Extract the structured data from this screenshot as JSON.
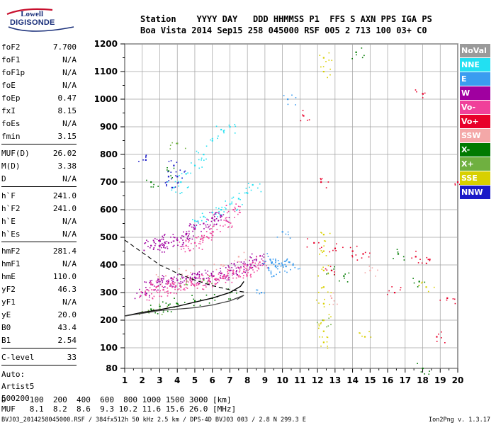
{
  "logo": {
    "line1": "Lowell",
    "line2": "DIGISONDE"
  },
  "header": {
    "line1": "Station    YYYY DAY   DDD HHMMSS P1  FFS S AXN PPS IGA PS",
    "line2": "Boa Vista 2014 Sep15 258 045000 RSF 005 2 713 100 03+ C0"
  },
  "params": [
    {
      "label": "foF2",
      "value": "7.700"
    },
    {
      "label": "foF1",
      "value": "N/A"
    },
    {
      "label": "foF1p",
      "value": "N/A"
    },
    {
      "label": "foE",
      "value": "N/A"
    },
    {
      "label": "foEp",
      "value": "0.47"
    },
    {
      "label": "fxI",
      "value": "8.15"
    },
    {
      "label": "foEs",
      "value": "N/A"
    },
    {
      "label": "fmin",
      "value": "3.15"
    },
    {
      "sep": true
    },
    {
      "label": "MUF(D)",
      "value": "26.02"
    },
    {
      "label": "M(D)",
      "value": "3.38"
    },
    {
      "label": "D",
      "value": "N/A"
    },
    {
      "sep": true
    },
    {
      "label": "h`F",
      "value": "241.0"
    },
    {
      "label": "h`F2",
      "value": "241.0"
    },
    {
      "label": "h`E",
      "value": "N/A"
    },
    {
      "label": "h`Es",
      "value": "N/A"
    },
    {
      "sep": true
    },
    {
      "label": "hmF2",
      "value": "281.4"
    },
    {
      "label": "hmF1",
      "value": "N/A"
    },
    {
      "label": "hmE",
      "value": "110.0"
    },
    {
      "label": "yF2",
      "value": "46.3"
    },
    {
      "label": "yF1",
      "value": "N/A"
    },
    {
      "label": "yE",
      "value": "20.0"
    },
    {
      "label": "B0",
      "value": "43.4"
    },
    {
      "label": "B1",
      "value": "2.54"
    },
    {
      "sep": true
    },
    {
      "label": "C-level",
      "value": "33"
    },
    {
      "sep": true
    }
  ],
  "auto_lines": [
    "Auto:",
    "Artist5",
    "500200"
  ],
  "bottom": {
    "d_row": "D     100  200  400  600  800 1000 1500 3000 [km]",
    "muf_row": "MUF   8.1  8.2  8.6  9.3 10.2 11.6 15.6 26.0 [MHz]"
  },
  "footer": {
    "left": "BVJ03_2014258045000.RSF / 384fx512h 50 kHz 2.5 km / DPS-4D BVJ03 003 / 2.8 N 299.3 E",
    "right": "Ion2Png v. 1.3.17"
  },
  "legend": [
    {
      "label": "NoVal",
      "color": "#9a9a9a"
    },
    {
      "label": "NNE",
      "color": "#22e0f2"
    },
    {
      "label": "E",
      "color": "#3a9cf0"
    },
    {
      "label": "W",
      "color": "#a000a0"
    },
    {
      "label": "Vo-",
      "color": "#f0409a"
    },
    {
      "label": "Vo+",
      "color": "#e8002a"
    },
    {
      "label": "SSW",
      "color": "#f4a8a8"
    },
    {
      "label": "X-",
      "color": "#007a00"
    },
    {
      "label": "X+",
      "color": "#6fb040"
    },
    {
      "label": "SSE",
      "color": "#d8d000"
    },
    {
      "label": "NNW",
      "color": "#1a1ac8"
    }
  ],
  "chart_data": {
    "type": "scatter",
    "title": "",
    "xlabel": "",
    "ylabel": "",
    "xlim": [
      1,
      20
    ],
    "ylim": [
      80,
      1200
    ],
    "x_ticks": [
      1,
      2,
      3,
      4,
      5,
      6,
      7,
      8,
      9,
      10,
      11,
      12,
      13,
      14,
      15,
      16,
      17,
      18,
      19,
      20
    ],
    "y_ticks": [
      80,
      100,
      200,
      300,
      400,
      500,
      600,
      700,
      800,
      900,
      1000,
      1100,
      1200
    ],
    "grid": true,
    "legend_position": "right",
    "series": [
      {
        "name": "W",
        "color": "#a000a0",
        "points": [
          [
            2.0,
            300
          ],
          [
            2.5,
            330
          ],
          [
            3.0,
            340
          ],
          [
            3.5,
            340
          ],
          [
            4.0,
            345
          ],
          [
            4.5,
            350
          ],
          [
            5.0,
            355
          ],
          [
            5.5,
            350
          ],
          [
            6.0,
            360
          ],
          [
            6.5,
            370
          ],
          [
            7.0,
            380
          ],
          [
            7.5,
            390
          ],
          [
            8.0,
            400
          ],
          [
            8.5,
            420
          ],
          [
            3.0,
            470
          ],
          [
            3.5,
            480
          ],
          [
            4.0,
            490
          ],
          [
            4.5,
            510
          ],
          [
            5.0,
            530
          ],
          [
            5.5,
            550
          ],
          [
            6.0,
            570
          ],
          [
            6.5,
            580
          ],
          [
            2.5,
            470
          ],
          [
            3.0,
            490
          ]
        ]
      },
      {
        "name": "Vo-",
        "color": "#f0409a",
        "points": [
          [
            2.2,
            290
          ],
          [
            2.8,
            320
          ],
          [
            3.2,
            310
          ],
          [
            3.8,
            330
          ],
          [
            4.2,
            320
          ],
          [
            4.8,
            340
          ],
          [
            5.2,
            330
          ],
          [
            5.8,
            345
          ],
          [
            6.2,
            350
          ],
          [
            6.8,
            360
          ],
          [
            7.2,
            370
          ],
          [
            7.8,
            375
          ],
          [
            8.2,
            390
          ],
          [
            8.7,
            410
          ],
          [
            4.5,
            470
          ],
          [
            5.0,
            480
          ],
          [
            5.5,
            500
          ],
          [
            6.0,
            520
          ],
          [
            6.8,
            560
          ],
          [
            7.2,
            600
          ]
        ]
      },
      {
        "name": "NNE",
        "color": "#22e0f2",
        "points": [
          [
            5.0,
            560
          ],
          [
            5.5,
            575
          ],
          [
            6.0,
            590
          ],
          [
            6.5,
            600
          ],
          [
            7.0,
            620
          ],
          [
            7.5,
            640
          ],
          [
            8.0,
            660
          ],
          [
            8.3,
            690
          ],
          [
            4.5,
            730
          ],
          [
            5.0,
            760
          ],
          [
            5.5,
            800
          ],
          [
            6.0,
            850
          ],
          [
            6.5,
            890
          ],
          [
            7.0,
            900
          ],
          [
            4.2,
            700
          ],
          [
            3.8,
            680
          ]
        ]
      },
      {
        "name": "E",
        "color": "#3a9cf0",
        "points": [
          [
            9.2,
            390
          ],
          [
            9.4,
            410
          ],
          [
            9.6,
            395
          ],
          [
            9.8,
            405
          ],
          [
            10.0,
            400
          ],
          [
            10.2,
            395
          ],
          [
            10.4,
            410
          ],
          [
            10.6,
            400
          ],
          [
            10.0,
            520
          ],
          [
            9.5,
            360
          ],
          [
            10.3,
            1000
          ],
          [
            8.8,
            300
          ],
          [
            9.3,
            420
          ]
        ]
      },
      {
        "name": "X-",
        "color": "#007a00",
        "points": [
          [
            2.5,
            240
          ],
          [
            3.0,
            250
          ],
          [
            3.5,
            255
          ],
          [
            4.0,
            260
          ],
          [
            5.0,
            270
          ],
          [
            6.0,
            280
          ],
          [
            7.0,
            300
          ],
          [
            3.5,
            740
          ],
          [
            2.5,
            700
          ],
          [
            12.8,
            380
          ],
          [
            13.5,
            360
          ],
          [
            16.6,
            440
          ],
          [
            17.8,
            340
          ],
          [
            18.0,
            80
          ],
          [
            14.2,
            1170
          ]
        ]
      },
      {
        "name": "X+",
        "color": "#6fb040",
        "points": [
          [
            2.0,
            230
          ],
          [
            3.0,
            240
          ],
          [
            4.5,
            330
          ],
          [
            5.5,
            345
          ],
          [
            4.0,
            840
          ],
          [
            12.3,
            200
          ]
        ]
      },
      {
        "name": "Vo+",
        "color": "#e8002a",
        "points": [
          [
            11.8,
            480
          ],
          [
            12.8,
            380
          ],
          [
            13.0,
            460
          ],
          [
            14.0,
            450
          ],
          [
            14.6,
            440
          ],
          [
            16.4,
            300
          ],
          [
            17.6,
            430
          ],
          [
            18.0,
            1020
          ],
          [
            18.4,
            420
          ],
          [
            11.2,
            940
          ],
          [
            12.2,
            700
          ],
          [
            19.4,
            280
          ],
          [
            20.0,
            700
          ],
          [
            18.8,
            140
          ]
        ]
      },
      {
        "name": "SSE",
        "color": "#d8d000",
        "points": [
          [
            12.35,
            120
          ],
          [
            12.35,
            160
          ],
          [
            12.35,
            200
          ],
          [
            12.35,
            260
          ],
          [
            12.35,
            320
          ],
          [
            12.35,
            380
          ],
          [
            12.35,
            450
          ],
          [
            12.35,
            510
          ],
          [
            12.35,
            1100
          ],
          [
            12.35,
            1150
          ],
          [
            14.7,
            140
          ],
          [
            18.2,
            320
          ]
        ]
      },
      {
        "name": "NNW",
        "color": "#1a1ac8",
        "points": [
          [
            2.2,
            780
          ],
          [
            3.5,
            720
          ],
          [
            3.8,
            760
          ],
          [
            4.0,
            720
          ],
          [
            3.7,
            680
          ]
        ]
      },
      {
        "name": "SSW",
        "color": "#f4a8a8",
        "points": [
          [
            3.0,
            350
          ],
          [
            4.5,
            380
          ],
          [
            6.5,
            400
          ],
          [
            7.5,
            430
          ],
          [
            12.8,
            280
          ],
          [
            15.0,
            380
          ]
        ]
      }
    ],
    "profile_curve": [
      [
        1,
        215
      ],
      [
        2,
        228
      ],
      [
        3,
        238
      ],
      [
        4,
        250
      ],
      [
        5,
        265
      ],
      [
        6,
        280
      ],
      [
        7,
        300
      ],
      [
        7.6,
        322
      ],
      [
        7.8,
        340
      ]
    ],
    "trace_curve": [
      [
        1,
        215
      ],
      [
        2,
        225
      ],
      [
        3,
        235
      ],
      [
        4,
        240
      ],
      [
        5,
        245
      ],
      [
        6,
        255
      ],
      [
        7,
        270
      ],
      [
        7.8,
        290
      ],
      [
        7.4,
        275
      ]
    ],
    "dashed_curve": [
      [
        1,
        490
      ],
      [
        2,
        445
      ],
      [
        3,
        400
      ],
      [
        4,
        370
      ],
      [
        5,
        345
      ],
      [
        6,
        325
      ],
      [
        7,
        310
      ],
      [
        8,
        300
      ]
    ]
  }
}
